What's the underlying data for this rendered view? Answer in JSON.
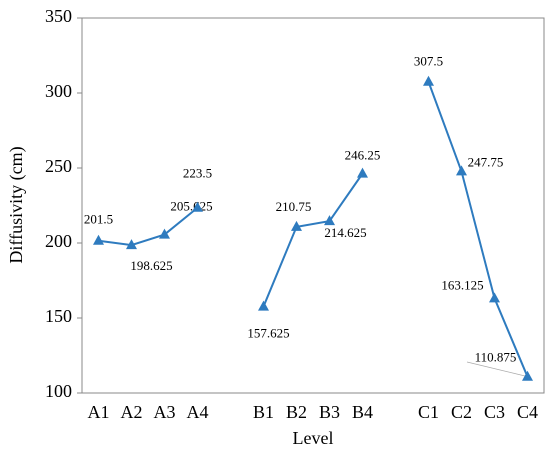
{
  "chart_data": {
    "type": "line",
    "x_label": "Level",
    "y_label": "Diffusivity (cm)",
    "categories": [
      "A1",
      "A2",
      "A3",
      "A4",
      null,
      "B1",
      "B2",
      "B3",
      "B4",
      null,
      "C1",
      "C2",
      "C3",
      "C4"
    ],
    "series": [
      {
        "name": "Diffusivity",
        "color": "#2e7bbf",
        "values": [
          201.5,
          198.625,
          205.625,
          223.5,
          null,
          157.625,
          210.75,
          214.625,
          246.25,
          null,
          307.5,
          247.75,
          163.125,
          110.875
        ]
      }
    ],
    "ylim": [
      100,
      350
    ],
    "yticks": [
      100,
      150,
      200,
      250,
      300,
      350
    ]
  }
}
